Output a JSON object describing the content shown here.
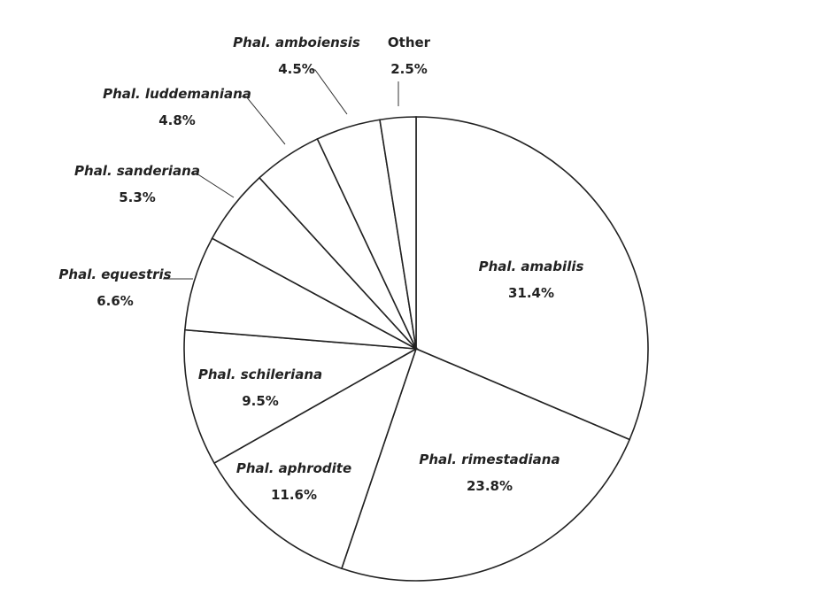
{
  "chart_data": {
    "type": "pie",
    "title": "",
    "legend": "none",
    "start_angle_deg": 90,
    "direction": "clockwise",
    "slices": [
      {
        "label": "Phal. amabilis",
        "value": 31.4,
        "value_label": "31.4%",
        "italic": true,
        "label_position": "inside"
      },
      {
        "label": "Phal. rimestadiana",
        "value": 23.8,
        "value_label": "23.8%",
        "italic": true,
        "label_position": "inside"
      },
      {
        "label": "Phal. aphrodite",
        "value": 11.6,
        "value_label": "11.6%",
        "italic": true,
        "label_position": "inside"
      },
      {
        "label": "Phal. schileriana",
        "value": 9.5,
        "value_label": "9.5%",
        "italic": true,
        "label_position": "inside"
      },
      {
        "label": "Phal. equestris",
        "value": 6.6,
        "value_label": "6.6%",
        "italic": true,
        "label_position": "outside"
      },
      {
        "label": "Phal. sanderiana",
        "value": 5.3,
        "value_label": "5.3%",
        "italic": true,
        "label_position": "outside"
      },
      {
        "label": "Phal. luddemaniana",
        "value": 4.8,
        "value_label": "4.8%",
        "italic": true,
        "label_position": "outside"
      },
      {
        "label": "Phal. amboiensis",
        "value": 4.5,
        "value_label": "4.5%",
        "italic": true,
        "label_position": "outside"
      },
      {
        "label": "Other",
        "value": 2.5,
        "value_label": "2.5%",
        "italic": false,
        "label_position": "outside"
      }
    ],
    "colors": {
      "fill": "#ffffff",
      "stroke": "#222222",
      "text": "#222222"
    }
  }
}
